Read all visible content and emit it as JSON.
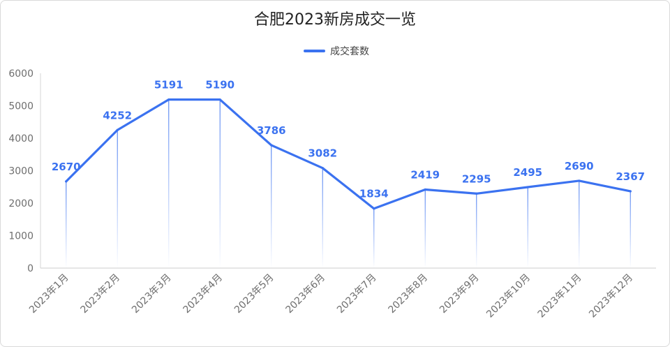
{
  "chart_data": {
    "type": "line",
    "title": "合肥2023新房成交一览",
    "categories": [
      "2023年1月",
      "2023年2月",
      "2023年3月",
      "2023年4月",
      "2023年5月",
      "2023年6月",
      "2023年7月",
      "2023年8月",
      "2023年9月",
      "2023年10月",
      "2023年11月",
      "2023年12月"
    ],
    "series": [
      {
        "name": "成交套数",
        "values": [
          2670,
          4252,
          5191,
          5190,
          3786,
          3082,
          1834,
          2419,
          2295,
          2495,
          2690,
          2367
        ],
        "color": "#3b72f0"
      }
    ],
    "ylim": [
      0,
      6000
    ],
    "yticks": [
      0,
      1000,
      2000,
      3000,
      4000,
      5000,
      6000
    ],
    "grid": false,
    "legend": "top-center",
    "data_labels": true,
    "drop_lines": true
  }
}
